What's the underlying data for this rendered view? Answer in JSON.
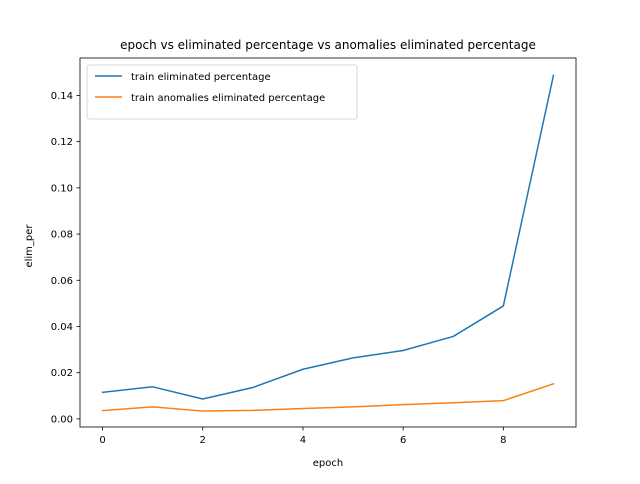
{
  "chart_data": {
    "type": "line",
    "title": "epoch vs eliminated percentage vs anomalies eliminated percentage",
    "xlabel": "epoch",
    "ylabel": "elim_per",
    "xlim": [
      -0.45,
      9.45
    ],
    "ylim": [
      -0.0035,
      0.1562
    ],
    "xticks": [
      0,
      2,
      4,
      6,
      8
    ],
    "xtick_labels": [
      "0",
      "2",
      "4",
      "6",
      "8"
    ],
    "yticks": [
      0.0,
      0.02,
      0.04,
      0.06,
      0.08,
      0.1,
      0.12,
      0.14
    ],
    "ytick_labels": [
      "0.00",
      "0.02",
      "0.04",
      "0.06",
      "0.08",
      "0.10",
      "0.12",
      "0.14"
    ],
    "grid": false,
    "legend_position": "upper-left",
    "x": [
      0,
      1,
      2,
      3,
      4,
      5,
      6,
      7,
      8,
      9
    ],
    "series": [
      {
        "name": "train eliminated percentage",
        "color": "#1f77b4",
        "values": [
          0.0115,
          0.0139,
          0.0086,
          0.0136,
          0.0215,
          0.0264,
          0.0296,
          0.0357,
          0.0489,
          0.1487
        ]
      },
      {
        "name": "train anomalies eliminated percentage",
        "color": "#ff7f0e",
        "values": [
          0.0036,
          0.0052,
          0.0034,
          0.0037,
          0.0045,
          0.0052,
          0.0062,
          0.007,
          0.0079,
          0.0152
        ]
      }
    ]
  }
}
